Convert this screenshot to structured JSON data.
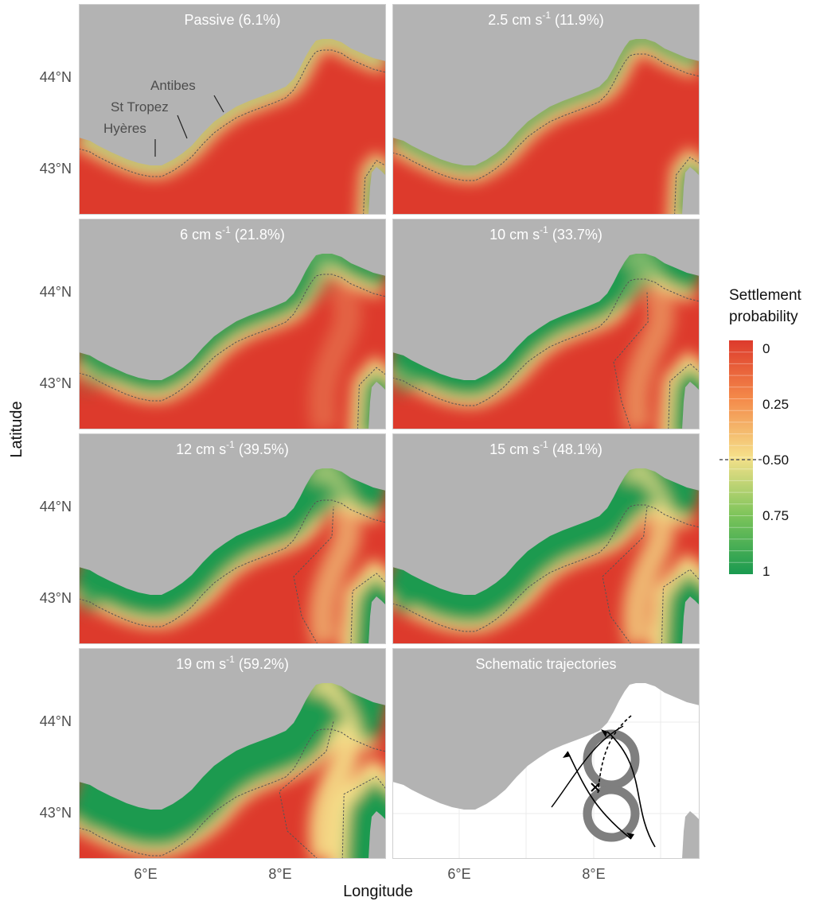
{
  "figure": {
    "axis_x_title": "Longitude",
    "axis_y_title": "Latitude",
    "x_ticks": [
      "6°E",
      "8°E"
    ],
    "y_ticks": [
      "44°N",
      "43°N"
    ],
    "land_color": "#b3b3b3",
    "sea_color": "#ffffff"
  },
  "panels": [
    {
      "title": "Passive (6.1%)",
      "speed": "passive",
      "settlement_pct": 6.1,
      "kind": "map"
    },
    {
      "title_main": "2.5 cm s",
      "title_sup": "-1",
      "title_tail": " (11.9%)",
      "speed_cm_s": 2.5,
      "settlement_pct": 11.9,
      "kind": "map"
    },
    {
      "title_main": "6 cm s",
      "title_sup": "-1",
      "title_tail": " (21.8%)",
      "speed_cm_s": 6,
      "settlement_pct": 21.8,
      "kind": "map"
    },
    {
      "title_main": "10 cm s",
      "title_sup": "-1",
      "title_tail": " (33.7%)",
      "speed_cm_s": 10,
      "settlement_pct": 33.7,
      "kind": "map"
    },
    {
      "title_main": "12 cm s",
      "title_sup": "-1",
      "title_tail": " (39.5%)",
      "speed_cm_s": 12,
      "settlement_pct": 39.5,
      "kind": "map"
    },
    {
      "title_main": "15 cm s",
      "title_sup": "-1",
      "title_tail": " (48.1%)",
      "speed_cm_s": 15,
      "settlement_pct": 48.1,
      "kind": "map"
    },
    {
      "title_main": "19 cm s",
      "title_sup": "-1",
      "title_tail": " (59.2%)",
      "speed_cm_s": 19,
      "settlement_pct": 59.2,
      "kind": "map"
    },
    {
      "title": "Schematic trajectories",
      "kind": "schematic"
    }
  ],
  "places": [
    {
      "name": "Antibes"
    },
    {
      "name": "St Tropez"
    },
    {
      "name": "Hyères"
    }
  ],
  "legend": {
    "title_line1": "Settlement",
    "title_line2": "probability",
    "ticks": [
      "0",
      "0.25",
      "0.50",
      "0.75",
      "1"
    ],
    "threshold": "0.50",
    "color_low": "#dd3a2c",
    "color_mid": "#f5e08a",
    "color_high": "#1a9a50"
  }
}
